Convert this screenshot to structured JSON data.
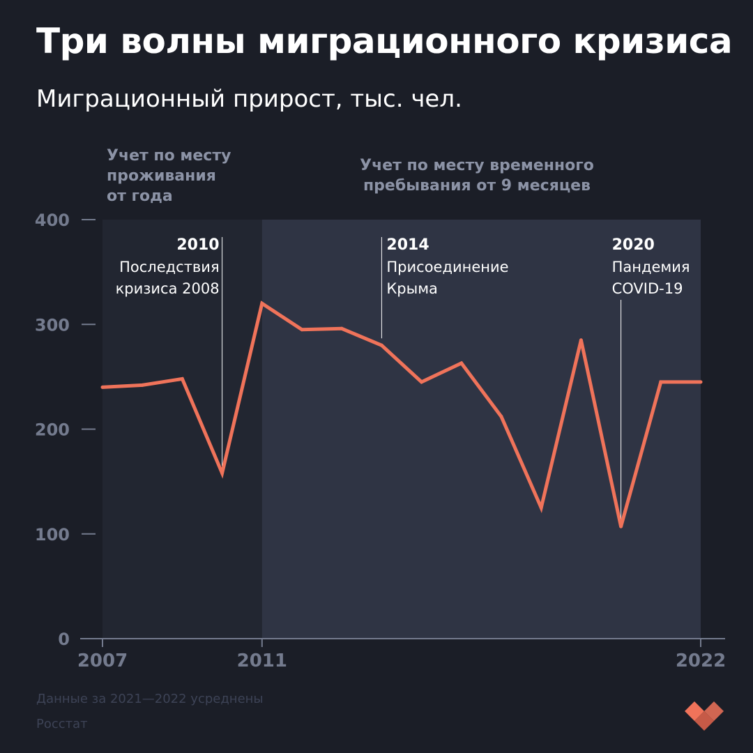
{
  "header": {
    "title": "Три волны миграционного кризиса",
    "subtitle": "Миграционный прирост, тыс. чел."
  },
  "periods": [
    {
      "from": 2007,
      "to": 2011,
      "label_lines": [
        "Учет по месту",
        "проживания",
        "от года"
      ]
    },
    {
      "from": 2011,
      "to": 2022,
      "label_lines": [
        "Учет по месту временного",
        "пребывания от 9 месяцев"
      ]
    }
  ],
  "annotations": [
    {
      "year": "2010",
      "lines": [
        "Последствия",
        "кризиса 2008"
      ]
    },
    {
      "year": "2014",
      "lines": [
        "Присоединение",
        "Крыма"
      ]
    },
    {
      "year": "2020",
      "lines": [
        "Пандемия",
        "COVID-19"
      ]
    }
  ],
  "chart_data": {
    "type": "line",
    "title": "Три волны миграционного кризиса",
    "subtitle": "Миграционный прирост, тыс. чел.",
    "x": [
      2007,
      2008,
      2009,
      2010,
      2011,
      2012,
      2013,
      2014,
      2015,
      2016,
      2017,
      2018,
      2019,
      2020,
      2021,
      2022
    ],
    "values": [
      240,
      242,
      248,
      158,
      320,
      295,
      296,
      280,
      245,
      263,
      212,
      125,
      285,
      107,
      245,
      245
    ],
    "x_ticks": [
      "2007",
      "2011",
      "2022"
    ],
    "y_ticks": [
      "0",
      "100",
      "200",
      "300",
      "400"
    ],
    "xlim": [
      2007,
      2022
    ],
    "ylim": [
      0,
      400
    ],
    "grid": false,
    "legend": "none"
  },
  "footer": {
    "note": "Данные за 2021—2022 усреднены",
    "source": "Росстат"
  },
  "colors": {
    "background": "#1b1e27",
    "period_1_band": "#222631",
    "period_2_band": "#2f3444",
    "line": "#f0735a",
    "axis_text": "#747b8e",
    "period_label": "#8c93a6",
    "annotation_text": "#ffffff",
    "footer_text": "#3d4356",
    "logo": "#f0735a"
  }
}
